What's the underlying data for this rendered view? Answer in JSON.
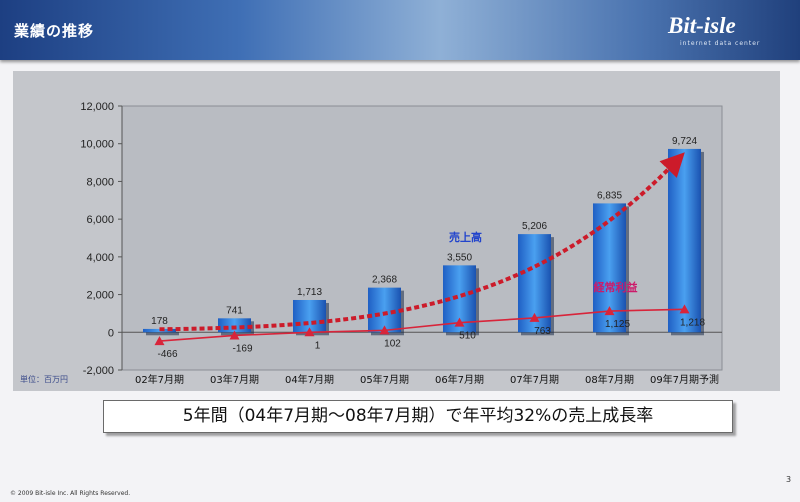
{
  "header": {
    "title": "業績の推移",
    "logo": "Bit-isle",
    "logo_sub": "internet data center"
  },
  "unit_label": "単位：百万円",
  "summary": "5年間（04年7月期〜08年7月期）で年平均32%の売上成長率",
  "footer": {
    "copyright": "© 2009 Bit-isle Inc. All Rights Reserved.",
    "page": "3"
  },
  "colors": {
    "bar": "#2f7fe0",
    "trend": "#cc1b2a",
    "profit_line": "#d8243a",
    "sales_label": "#2244cc",
    "profit_label": "#cc1b6a"
  },
  "chart_data": {
    "type": "bar",
    "categories": [
      "02年7月期",
      "03年7月期",
      "04年7月期",
      "05年7月期",
      "06年7月期",
      "07年7月期",
      "08年7月期",
      "09年7月期予測"
    ],
    "ylim": [
      -2000,
      12000
    ],
    "yticks": [
      "-2,000",
      "0",
      "2,000",
      "4,000",
      "6,000",
      "8,000",
      "10,000",
      "12,000"
    ],
    "series": [
      {
        "name": "売上高",
        "type": "bar",
        "values": [
          178,
          741,
          1713,
          2368,
          3550,
          5206,
          6835,
          9724
        ],
        "labels": [
          "178",
          "741",
          "1,713",
          "2,368",
          "3,550",
          "5,206",
          "6,835",
          "9,724"
        ]
      },
      {
        "name": "経常利益",
        "type": "line",
        "values": [
          -466,
          -169,
          1,
          102,
          510,
          763,
          1125,
          1218
        ],
        "labels": [
          "-466",
          "-169",
          "1",
          "102",
          "510",
          "763",
          "1,125",
          "1,218"
        ]
      }
    ]
  }
}
